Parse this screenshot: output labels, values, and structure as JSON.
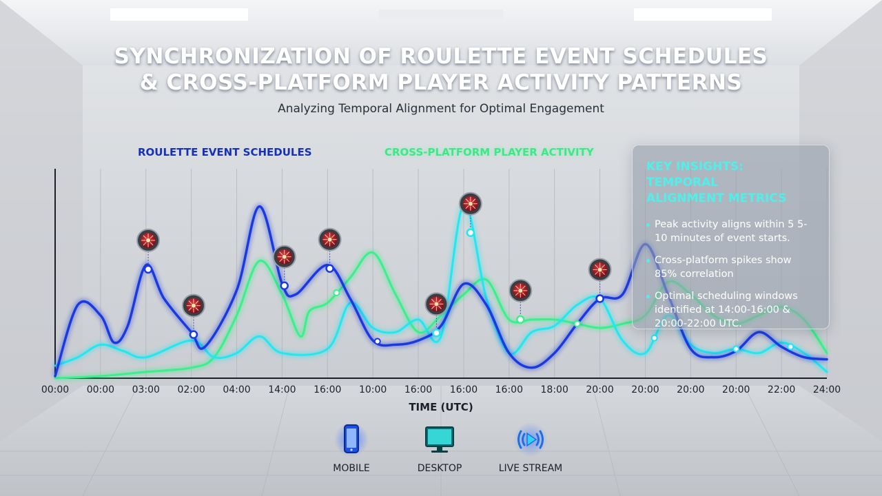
{
  "header": {
    "title_line1": "SYNCHRONIZATION OF ROULETTE EVENT SCHEDULES",
    "title_line2": "& CROSS-PLATFORM PLAYER ACTIVITY PATTERNS",
    "subtitle": "Analyzing Temporal Alignment for Optimal Engagement"
  },
  "insights": {
    "title_line1": "KEY INSIGHTS: TEMPORAL",
    "title_line2": "ALIGNMENT METRICS",
    "bullets": [
      "Peak activity aligns within 5 5-10 minutes of event starts.",
      "Cross-platform spikes show 85% correlation",
      "Optimal scheduling windows identified at 14:00-16:00 & 20:00-22:00 UTC."
    ]
  },
  "platforms": [
    {
      "label": "MOBILE",
      "icon": "smartphone-icon"
    },
    {
      "label": "DESKTOP",
      "icon": "desktop-monitor-icon"
    },
    {
      "label": "LIVE STREAM",
      "icon": "live-stream-play-icon"
    }
  ],
  "colors": {
    "roulette_series": "#1a3ae0",
    "activity_green": "#39f08a",
    "activity_cyan": "#22e6f0",
    "insight_accent": "#4ff0ea"
  },
  "chart_data": {
    "type": "line",
    "title": "",
    "xlabel": "TIME (UTC)",
    "ylabel": "",
    "ylim": [
      0,
      100
    ],
    "grid": true,
    "legend": "top",
    "x_ticks": [
      "00:00",
      "00:00",
      "03:00",
      "02:00",
      "04:00",
      "14:00",
      "16:00",
      "10:00",
      "16:00",
      "16:00",
      "16:00",
      "18:00",
      "20:00",
      "20:00",
      "20:00",
      "20:00",
      "22:00",
      "24:00"
    ],
    "series": [
      {
        "name": "ROULETTE EVENT SCHEDULES",
        "color": "#1a3ae0",
        "points": [
          [
            0,
            1
          ],
          [
            0.5,
            35
          ],
          [
            1,
            30
          ],
          [
            1.3,
            17
          ],
          [
            1.6,
            25
          ],
          [
            2,
            54
          ],
          [
            2.4,
            38
          ],
          [
            3,
            22
          ],
          [
            3.3,
            15
          ],
          [
            4,
            42
          ],
          [
            4.5,
            82
          ],
          [
            5,
            45
          ],
          [
            5.3,
            40
          ],
          [
            6,
            54
          ],
          [
            6.5,
            38
          ],
          [
            7,
            18
          ],
          [
            7.5,
            16
          ],
          [
            8,
            18
          ],
          [
            8.5,
            25
          ],
          [
            9,
            45
          ],
          [
            9.5,
            35
          ],
          [
            10,
            12
          ],
          [
            10.5,
            5
          ],
          [
            11,
            12
          ],
          [
            11.5,
            26
          ],
          [
            12,
            38
          ],
          [
            12.5,
            40
          ],
          [
            13,
            64
          ],
          [
            13.5,
            40
          ],
          [
            14,
            14
          ],
          [
            14.5,
            10
          ],
          [
            15,
            13
          ],
          [
            15.5,
            22
          ],
          [
            16,
            15
          ],
          [
            16.5,
            10
          ],
          [
            17,
            9
          ]
        ]
      },
      {
        "name": "CROSS-PLATFORM PLAYER ACTIVITY",
        "color": "#39f08a",
        "points": [
          [
            0,
            0
          ],
          [
            1,
            1
          ],
          [
            2,
            3
          ],
          [
            3,
            5
          ],
          [
            3.5,
            10
          ],
          [
            4,
            30
          ],
          [
            4.5,
            56
          ],
          [
            5,
            40
          ],
          [
            5.4,
            20
          ],
          [
            5.6,
            32
          ],
          [
            6,
            36
          ],
          [
            6.5,
            48
          ],
          [
            7,
            60
          ],
          [
            7.5,
            40
          ],
          [
            8,
            22
          ],
          [
            8.5,
            30
          ],
          [
            9,
            40
          ],
          [
            9.5,
            47
          ],
          [
            10,
            28
          ],
          [
            10.5,
            28
          ],
          [
            11,
            28
          ],
          [
            11.5,
            26
          ],
          [
            12,
            24
          ],
          [
            12.5,
            26
          ],
          [
            13,
            30
          ],
          [
            13.5,
            46
          ],
          [
            14,
            40
          ],
          [
            14.5,
            30
          ],
          [
            15,
            26
          ],
          [
            15.5,
            30
          ],
          [
            16,
            34
          ],
          [
            16.5,
            28
          ],
          [
            17,
            12
          ]
        ]
      },
      {
        "name": "",
        "color": "#22e6f0",
        "points": [
          [
            0,
            6
          ],
          [
            0.5,
            10
          ],
          [
            1,
            16
          ],
          [
            1.5,
            13
          ],
          [
            2,
            10
          ],
          [
            3,
            18
          ],
          [
            3.5,
            10
          ],
          [
            4,
            12
          ],
          [
            4.5,
            20
          ],
          [
            5,
            12
          ],
          [
            6,
            14
          ],
          [
            6.5,
            36
          ],
          [
            7,
            24
          ],
          [
            7.5,
            22
          ],
          [
            8,
            28
          ],
          [
            8.5,
            20
          ],
          [
            9,
            83
          ],
          [
            9.5,
            38
          ],
          [
            10,
            12
          ],
          [
            10.5,
            22
          ],
          [
            11,
            25
          ],
          [
            11.5,
            35
          ],
          [
            12,
            38
          ],
          [
            12.5,
            18
          ],
          [
            13,
            12
          ],
          [
            13.5,
            30
          ],
          [
            14,
            16
          ],
          [
            14.5,
            12
          ],
          [
            15,
            14
          ],
          [
            15.5,
            12
          ],
          [
            16,
            17
          ],
          [
            16.5,
            12
          ],
          [
            17,
            3
          ]
        ]
      }
    ],
    "event_markers_x": [
      2.05,
      3.05,
      5.05,
      6.05,
      8.4,
      9.15,
      10.25,
      12.0
    ]
  }
}
